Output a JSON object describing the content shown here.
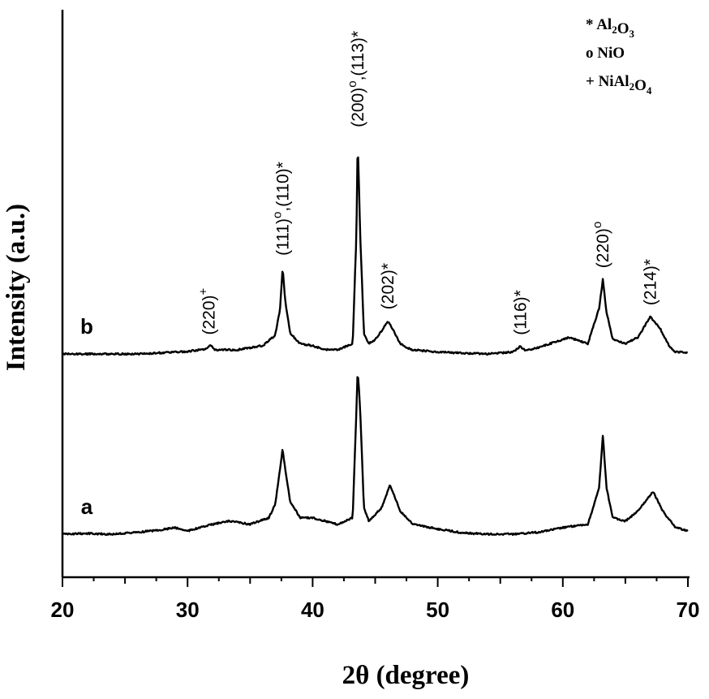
{
  "chart_data": {
    "type": "line",
    "xlabel": "2θ (degree)",
    "ylabel": "Intensity (a.u.)",
    "xlim": [
      20,
      70
    ],
    "x_ticks": [
      "20",
      "30",
      "40",
      "50",
      "60",
      "70"
    ],
    "y_ticks_labeled": false,
    "grid": false,
    "legend_position": "top-right",
    "legend": [
      {
        "symbol": "*",
        "label": "Al2O3"
      },
      {
        "symbol": "o",
        "label": "NiO"
      },
      {
        "symbol": "+",
        "label": "NiAl2O4"
      }
    ],
    "series": [
      {
        "name": "a",
        "x": [
          20,
          22,
          24,
          26,
          28,
          29,
          30,
          32,
          33.4,
          35,
          36.5,
          37,
          37.4,
          37.6,
          37.8,
          38.2,
          39,
          40,
          41,
          42,
          43.2,
          43.5,
          43.6,
          43.8,
          44.1,
          44.5,
          45.5,
          46.2,
          47,
          48,
          50,
          52,
          54,
          56,
          58,
          60,
          62,
          62.9,
          63.2,
          63.5,
          64,
          65,
          66,
          67.2,
          68,
          69,
          70
        ],
        "y": [
          1.0,
          1.1,
          1.0,
          1.3,
          1.7,
          2.0,
          1.5,
          2.5,
          3.0,
          2.5,
          3.5,
          5.5,
          11,
          14,
          11,
          6,
          3.5,
          3.5,
          3.0,
          2.5,
          3.5,
          20,
          26,
          20,
          5,
          3.0,
          5.0,
          8.5,
          4.5,
          2.5,
          1.8,
          1.2,
          1.0,
          1.0,
          1.3,
          2.0,
          2.5,
          8,
          16,
          8,
          3.5,
          3.0,
          4.5,
          7.5,
          4.5,
          2.0,
          1.5
        ]
      },
      {
        "name": "b",
        "x": [
          20,
          22,
          24,
          26,
          28,
          30,
          31.5,
          31.8,
          32.2,
          34,
          36,
          37,
          37.4,
          37.6,
          37.8,
          38.2,
          39,
          40,
          41,
          42,
          43.2,
          43.5,
          43.6,
          43.8,
          44.1,
          44.5,
          45,
          45.5,
          46,
          46.5,
          47,
          47.5,
          48,
          50,
          52,
          54,
          56,
          56.6,
          57,
          58,
          59,
          60.5,
          62,
          62.9,
          63.2,
          63.5,
          64,
          65,
          66,
          67,
          67.8,
          68.5,
          69,
          70
        ],
        "y": [
          1.0,
          1.0,
          1.0,
          1.0,
          1.3,
          1.6,
          2.2,
          3.2,
          2.0,
          2.0,
          3.0,
          5.5,
          12,
          22,
          14,
          6,
          3.5,
          3.0,
          2.0,
          2.0,
          3.5,
          30,
          53,
          30,
          6,
          3.5,
          4.5,
          6.5,
          9.0,
          6.5,
          3.5,
          2.5,
          2.0,
          1.5,
          1.2,
          1.0,
          1.5,
          2.8,
          1.8,
          2.5,
          3.5,
          5.0,
          3.5,
          12,
          19,
          11,
          4.5,
          3.5,
          5.0,
          10,
          7.0,
          3.0,
          1.5,
          1.3
        ]
      }
    ],
    "series_labels": [
      {
        "text": "a",
        "series": "a"
      },
      {
        "text": "b",
        "series": "b"
      }
    ],
    "annotations": [
      {
        "series": "b",
        "x": 31.7,
        "miller": "(220)",
        "sup": "+"
      },
      {
        "series": "b",
        "x": 37.6,
        "miller": "(111)",
        "sup": "o",
        "tail": ",(110)*"
      },
      {
        "series": "b",
        "x": 43.6,
        "miller": "(200)",
        "sup": "o",
        "tail": ",(113)*"
      },
      {
        "series": "b",
        "x": 46.0,
        "miller": "(202)*"
      },
      {
        "series": "b",
        "x": 56.6,
        "miller": "(116)*"
      },
      {
        "series": "b",
        "x": 63.2,
        "miller": "(220)",
        "sup": "o"
      },
      {
        "series": "b",
        "x": 67.0,
        "miller": "(214)*"
      }
    ]
  }
}
